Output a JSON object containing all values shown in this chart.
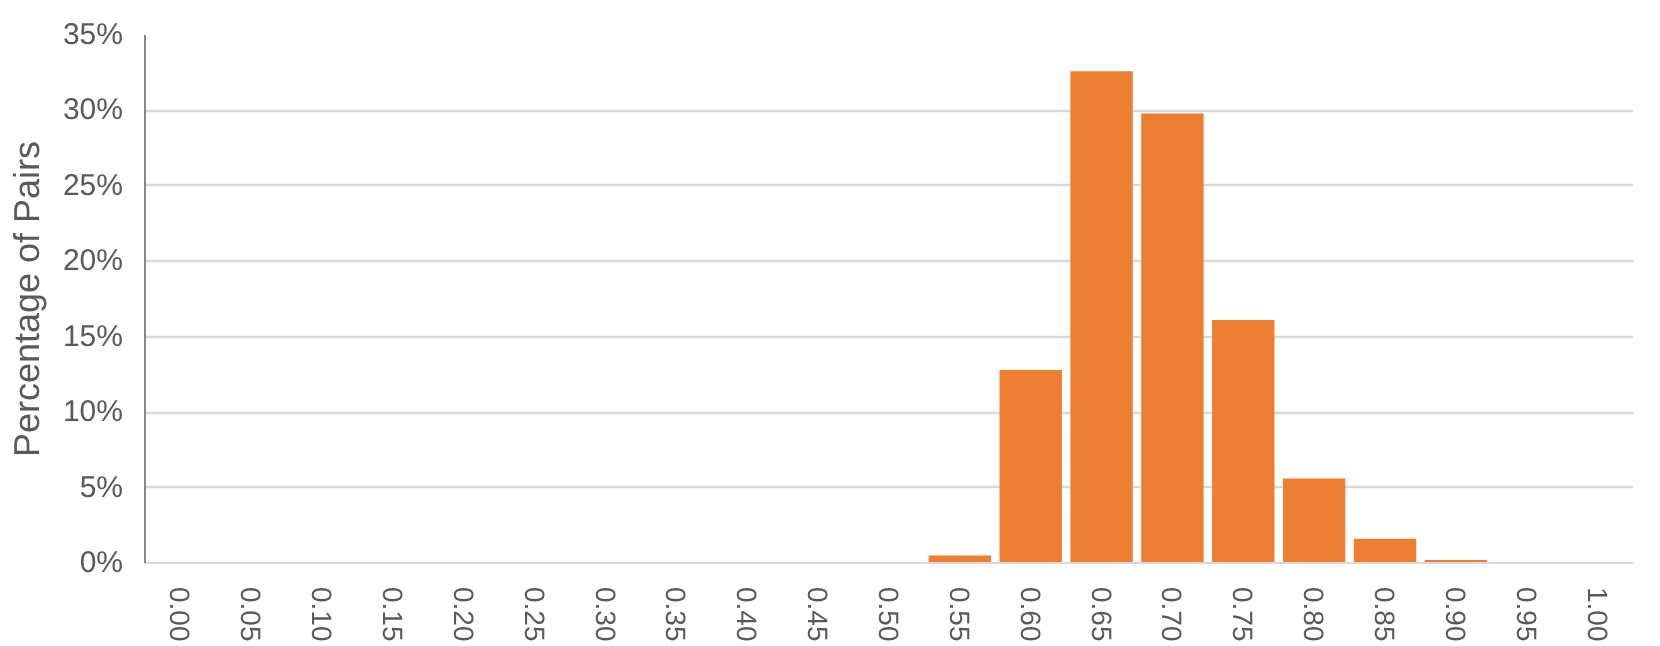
{
  "chart_data": {
    "type": "bar",
    "ylabel": "Percentage of Pairs",
    "categories": [
      "0.00",
      "0.05",
      "0.10",
      "0.15",
      "0.20",
      "0.25",
      "0.30",
      "0.35",
      "0.40",
      "0.45",
      "0.50",
      "0.55",
      "0.60",
      "0.65",
      "0.70",
      "0.75",
      "0.80",
      "0.85",
      "0.90",
      "0.95",
      "1.00"
    ],
    "values": [
      0,
      0,
      0,
      0,
      0,
      0,
      0,
      0,
      0,
      0,
      0,
      0.5,
      12.8,
      32.6,
      29.8,
      16.1,
      5.6,
      1.6,
      0.2,
      0,
      0
    ],
    "color": "#ed7d31",
    "ylim": [
      0,
      35
    ],
    "yticks": [
      {
        "value": 0,
        "label": "0%"
      },
      {
        "value": 5,
        "label": "5%"
      },
      {
        "value": 10,
        "label": "10%"
      },
      {
        "value": 15,
        "label": "15%"
      },
      {
        "value": 20,
        "label": "20%"
      },
      {
        "value": 25,
        "label": "25%"
      },
      {
        "value": 30,
        "label": "30%"
      },
      {
        "value": 35,
        "label": "35%"
      }
    ],
    "grid": "y"
  }
}
